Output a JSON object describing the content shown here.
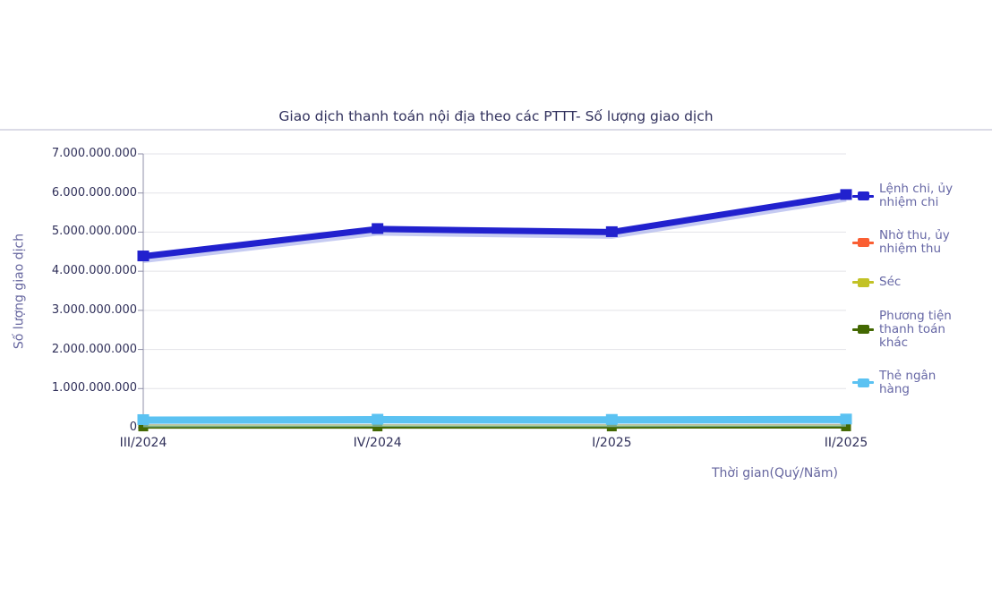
{
  "chart_data": {
    "type": "line",
    "title": "Giao dịch thanh toán nội địa theo các PTTT- Số lượng giao dịch",
    "xlabel": "Thời gian(Quý/Năm)",
    "ylabel": "Số lượng giao dịch",
    "categories": [
      "III/2024",
      "IV/2024",
      "I/2025",
      "II/2025"
    ],
    "ylim": [
      0,
      7000000000
    ],
    "y_tick_step": 1000000000,
    "y_tick_labels": [
      "0",
      "1.000.000.000",
      "2.000.000.000",
      "3.000.000.000",
      "4.000.000.000",
      "5.000.000.000",
      "6.000.000.000",
      "7.000.000.000"
    ],
    "grid": "horizontal",
    "legend_position": "right",
    "series": [
      {
        "name": "Lệnh chi, ủy nhiệm chi",
        "color": "#2121CE",
        "marker": "square",
        "values": [
          4380000000,
          5080000000,
          5000000000,
          5950000000
        ]
      },
      {
        "name": "Nhờ thu, ủy nhiệm thu",
        "color": "#FA5F33",
        "marker": "square",
        "values": [
          55000000,
          55000000,
          55000000,
          60000000
        ]
      },
      {
        "name": "Séc",
        "color": "#C2C226",
        "marker": "square",
        "values": [
          45000000,
          45000000,
          45000000,
          45000000
        ]
      },
      {
        "name": "Phương tiện thanh toán khác",
        "color": "#436802",
        "marker": "square",
        "values": [
          10000000,
          10000000,
          10000000,
          12000000
        ]
      },
      {
        "name": "Thẻ ngân hàng",
        "color": "#5BC2F2",
        "marker": "square",
        "values": [
          195000000,
          205000000,
          200000000,
          210000000
        ]
      }
    ],
    "colors": {
      "grid_line": "#E3E3E8",
      "axis_line": "#8F8FA8",
      "title_text": "#32325E",
      "tick_text": "#30305A",
      "axis_title_text": "#66669F",
      "legend_text": "#6667A5",
      "divider": "#DBDBE7",
      "background": "#FFFFFF"
    }
  }
}
